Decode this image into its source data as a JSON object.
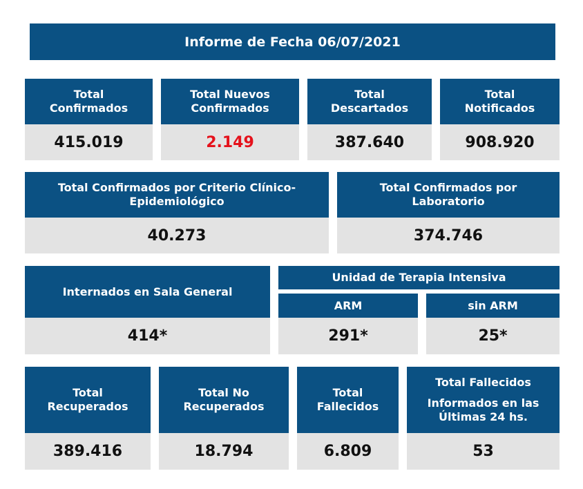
{
  "title": "Informe de Fecha 06/07/2021",
  "row1": [
    {
      "label": "Total Confirmados",
      "value": "415.019"
    },
    {
      "label": "Total Nuevos Confirmados",
      "value": "2.149"
    },
    {
      "label": "Total Descartados",
      "value": "387.640"
    },
    {
      "label": "Total Notificados",
      "value": "908.920"
    }
  ],
  "row2": [
    {
      "label": "Total Confirmados por Criterio Clínico-Epidemiológico",
      "value": "40.273"
    },
    {
      "label": "Total Confirmados por Laboratorio",
      "value": "374.746"
    }
  ],
  "row3": {
    "sala_general": {
      "label": "Internados en Sala General",
      "value": "414*"
    },
    "uti": {
      "label": "Unidad de Terapia Intensiva",
      "arm": {
        "label": "ARM",
        "value": "291*"
      },
      "sin_arm": {
        "label": "sin ARM",
        "value": "25*"
      }
    }
  },
  "row4": [
    {
      "label": "Total Recuperados",
      "value": "389.416"
    },
    {
      "label": "Total No Recuperados",
      "value": "18.794"
    },
    {
      "label": "Total Fallecidos",
      "value": "6.809"
    },
    {
      "label": "Total Fallecidos",
      "sublabel": "Informados en las Últimas 24 hs.",
      "value": "53"
    }
  ],
  "colors": {
    "header_bg": "#0b5183",
    "value_bg": "#e3e3e3",
    "highlight": "#e5121c"
  }
}
